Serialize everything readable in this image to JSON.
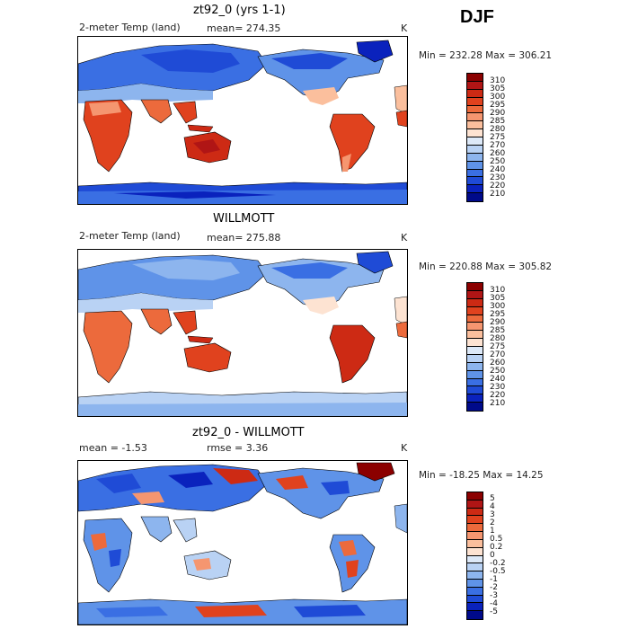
{
  "season": "DJF",
  "panels": [
    {
      "title": "zt92_0 (yrs 1-1)",
      "left_label": "2-meter Temp (land)",
      "center_label": "mean= 274.35",
      "unit": "K",
      "minmax": "Min = 232.28 Max = 306.21",
      "colorbar": {
        "labels": [
          "310",
          "305",
          "300",
          "295",
          "290",
          "285",
          "280",
          "275",
          "270",
          "260",
          "250",
          "240",
          "230",
          "220",
          "210"
        ],
        "colors": [
          "#8b0000",
          "#b01515",
          "#cd2a14",
          "#e0421e",
          "#ec6a3c",
          "#f59670",
          "#fbbf9d",
          "#fde3d2",
          "#dde9f8",
          "#b9d2f4",
          "#8db5ee",
          "#5f93e8",
          "#3a6fe3",
          "#1f4bd6",
          "#0a22bd",
          "#000a8a"
        ]
      }
    },
    {
      "title": "WILLMOTT",
      "left_label": "2-meter Temp (land)",
      "center_label": "mean= 275.88",
      "unit": "K",
      "minmax": "Min = 220.88 Max = 305.82",
      "colorbar": {
        "labels": [
          "310",
          "305",
          "300",
          "295",
          "290",
          "285",
          "280",
          "275",
          "270",
          "260",
          "250",
          "240",
          "230",
          "220",
          "210"
        ],
        "colors": [
          "#8b0000",
          "#b01515",
          "#cd2a14",
          "#e0421e",
          "#ec6a3c",
          "#f59670",
          "#fbbf9d",
          "#fde3d2",
          "#dde9f8",
          "#b9d2f4",
          "#8db5ee",
          "#5f93e8",
          "#3a6fe3",
          "#1f4bd6",
          "#0a22bd",
          "#000a8a"
        ]
      }
    },
    {
      "title": "zt92_0 - WILLMOTT",
      "left_label": "mean =   -1.53",
      "center_label": "rmse =    3.36",
      "unit": "K",
      "minmax": "Min = -18.25 Max =  14.25",
      "colorbar": {
        "labels": [
          "5",
          "4",
          "3",
          "2",
          "1",
          "0.5",
          "0.2",
          "0",
          "-0.2",
          "-0.5",
          "-1",
          "-2",
          "-3",
          "-4",
          "-5"
        ],
        "colors": [
          "#8b0000",
          "#b01515",
          "#cd2a14",
          "#e0421e",
          "#ec6a3c",
          "#f59670",
          "#fbbf9d",
          "#fde3d2",
          "#dde9f8",
          "#b9d2f4",
          "#8db5ee",
          "#5f93e8",
          "#3a6fe3",
          "#1f4bd6",
          "#0a22bd",
          "#000a8a"
        ]
      }
    }
  ]
}
